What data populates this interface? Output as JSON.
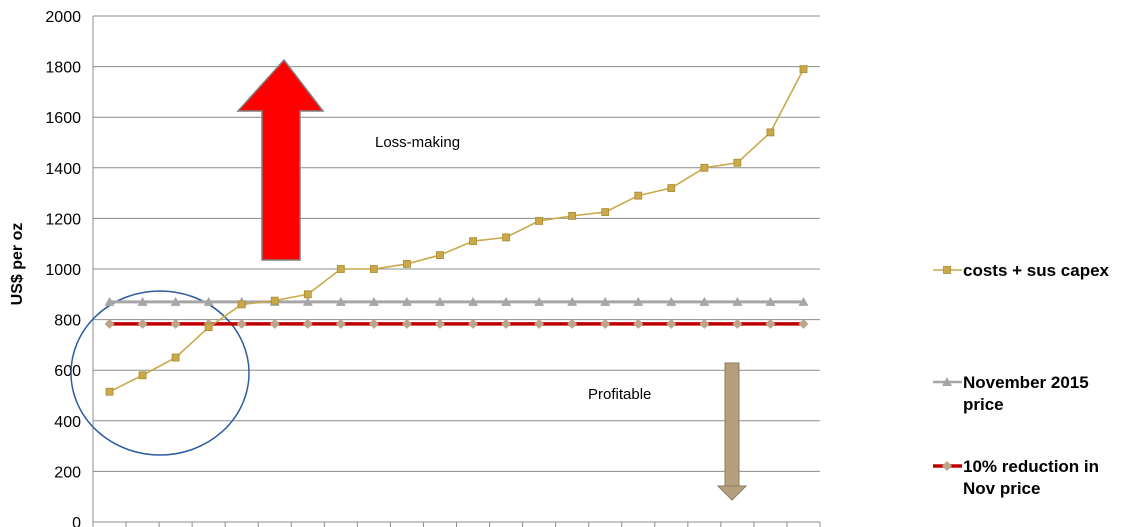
{
  "chart_data": {
    "type": "line",
    "title": "",
    "ylabel": "US$ per oz",
    "xlabel": "",
    "ylim": [
      0,
      2000
    ],
    "yticks": [
      0,
      200,
      400,
      600,
      800,
      1000,
      1200,
      1400,
      1600,
      1800,
      2000
    ],
    "n_points": 22,
    "grid": "horizontal",
    "legend_position": "right",
    "series": [
      {
        "name": "costs + sus capex",
        "color": "#C9A94A",
        "marker": "square",
        "values": [
          515,
          580,
          650,
          770,
          860,
          875,
          900,
          1000,
          1000,
          1020,
          1055,
          1110,
          1125,
          1190,
          1210,
          1225,
          1290,
          1320,
          1400,
          1420,
          1540,
          1790
        ]
      },
      {
        "name": "November 2015 price",
        "color": "#A6A6A6",
        "marker": "triangle",
        "values": [
          870,
          870,
          870,
          870,
          870,
          870,
          870,
          870,
          870,
          870,
          870,
          870,
          870,
          870,
          870,
          870,
          870,
          870,
          870,
          870,
          870,
          870
        ]
      },
      {
        "name": "10% reduction in Nov price",
        "color": "#C00000",
        "marker_color": "#BBA58C",
        "marker": "diamond",
        "values": [
          783,
          783,
          783,
          783,
          783,
          783,
          783,
          783,
          783,
          783,
          783,
          783,
          783,
          783,
          783,
          783,
          783,
          783,
          783,
          783,
          783,
          783
        ]
      }
    ],
    "annotations": [
      {
        "text": "Loss-making"
      },
      {
        "text": "Profitable"
      }
    ],
    "legend": [
      {
        "lines": [
          "costs + sus capex"
        ]
      },
      {
        "lines": [
          "November 2015",
          "price"
        ]
      },
      {
        "lines": [
          "10% reduction in",
          "Nov price"
        ]
      }
    ]
  }
}
